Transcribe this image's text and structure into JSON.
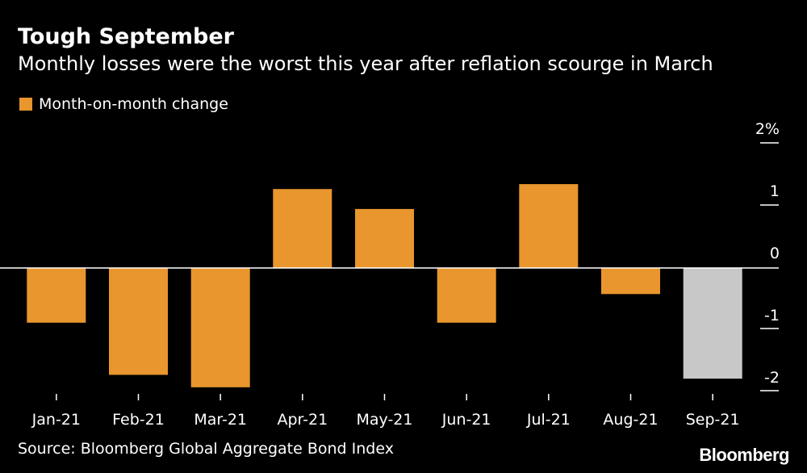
{
  "title": "Tough September",
  "subtitle": "Monthly losses were the worst this year after reflation scourge in March",
  "source": "Source: Bloomberg Global Aggregate Bond Index",
  "brand": "Bloomberg",
  "colors": {
    "positive": "#e8962d",
    "highlight": "#c8c8c8",
    "background": "#000000"
  },
  "chart_data": {
    "type": "bar",
    "categories": [
      "Jan-21",
      "Feb-21",
      "Mar-21",
      "Apr-21",
      "May-21",
      "Jun-21",
      "Jul-21",
      "Aug-21",
      "Sep-21"
    ],
    "series": [
      {
        "name": "Month-on-month change",
        "values": [
          -0.88,
          -1.72,
          -1.92,
          1.27,
          0.95,
          -0.88,
          1.35,
          -0.42,
          -1.78
        ]
      }
    ],
    "highlight_index": 8,
    "ylim": [
      -2,
      2
    ],
    "yticks": [
      2,
      1,
      0,
      -1,
      -2
    ],
    "ytick_labels": [
      "2%",
      "1",
      "0",
      "-1",
      "-2"
    ],
    "xlabel": "",
    "ylabel": ""
  }
}
